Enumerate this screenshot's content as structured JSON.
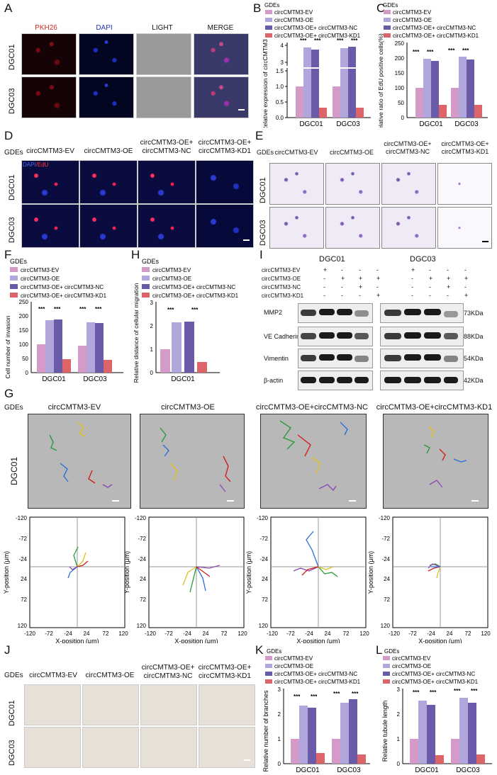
{
  "panels": {
    "A": "A",
    "B": "B",
    "C": "C",
    "D": "D",
    "E": "E",
    "F": "F",
    "G": "G",
    "H": "H",
    "I": "I",
    "J": "J",
    "K": "K",
    "L": "L"
  },
  "colors": {
    "ev": "#d49bc8",
    "oe": "#b1a6db",
    "nc": "#6a5aa8",
    "kd1": "#dd6468"
  },
  "legend": {
    "title": "GDEs",
    "ev": "circCMTM3-EV",
    "oe": "circCMTM3-OE",
    "nc": "circCMTM3-OE+ circCMTM3-NC",
    "kd1": "circCMTM3-OE+ circCMTM3-KD1"
  },
  "panelA": {
    "cols": [
      "PKH26",
      "DAPI",
      "LIGHT",
      "MERGE"
    ],
    "rows": [
      "DGC01",
      "DGC03"
    ]
  },
  "panelD": {
    "gdes": "GDEs",
    "cols": [
      "circCMTM3-EV",
      "circCMTM3-OE",
      "circCMTM3-OE+\ncircCMTM3-NC",
      "circCMTM3-OE+\ncircCMTM3-KD1"
    ],
    "rows": [
      "DGC01",
      "DGC03"
    ],
    "stain": "DAPI/EdU",
    "stain_dapi": "DAPI",
    "stain_edu": "/EdU"
  },
  "panelE": {
    "gdes": "GDEs",
    "cols": [
      "circCMTM3-EV",
      "circCMTM3-OE",
      "circCMTM3-OE+\ncircCMTM3-NC",
      "circCMTM3-OE+\ncircCMTM3-KD1"
    ],
    "rows": [
      "DGC01",
      "DGC03"
    ]
  },
  "panelG": {
    "gdes": "GDEs",
    "cols": [
      "circCMTM3-EV",
      "circCMTM3-OE",
      "circCMTM3-OE+circCMTM3-NC",
      "circCMTM3-OE+circCMTM3-KD1"
    ],
    "row": "DGC01"
  },
  "panelI": {
    "groups": [
      "DGC01",
      "DGC03"
    ],
    "conditions": [
      "circCMTM3-EV",
      "circCMTM3-OE",
      "circCMTM3-NC",
      "circCMTM3-KD1"
    ],
    "signs": [
      [
        "+",
        "-",
        "-",
        "-"
      ],
      [
        "-",
        "+",
        "+",
        "+"
      ],
      [
        "-",
        "-",
        "+",
        "-"
      ],
      [
        "-",
        "-",
        "-",
        "+"
      ]
    ],
    "proteins": [
      "MMP2",
      "VE Cadherin",
      "Vimentin",
      "β-actin"
    ],
    "sizes": [
      "73KDa",
      "88KDa",
      "54KDa",
      "42KDa"
    ]
  },
  "panelJ": {
    "gdes": "GDEs",
    "cols": [
      "circCMTM3-EV",
      "circCMTM3-OE",
      "circCMTM3-OE+\ncircCMTM3-NC",
      "circCMTM3-OE+\ncircCMTM3-KD1"
    ],
    "rows": [
      "DGC01",
      "DGC03"
    ]
  },
  "chart_data": [
    {
      "panel": "B",
      "type": "bar",
      "categories": [
        "DGC01",
        "DGC03"
      ],
      "ylabel": "Relative expression of circCMTM3",
      "ylim": [
        0,
        4
      ],
      "axis_break": [
        1.5,
        3
      ],
      "yticks": [
        "0.0",
        "0.5",
        "1.0",
        "1.5",
        "3",
        "4"
      ],
      "series": [
        {
          "name": "circCMTM3-EV",
          "values": [
            1.0,
            1.0
          ]
        },
        {
          "name": "circCMTM3-OE",
          "values": [
            3.9,
            3.85
          ]
        },
        {
          "name": "circCMTM3-OE+ circCMTM3-NC",
          "values": [
            3.75,
            3.9
          ]
        },
        {
          "name": "circCMTM3-OE+ circCMTM3-KD1",
          "values": [
            0.32,
            0.32
          ]
        }
      ],
      "sig": [
        "***",
        "***"
      ]
    },
    {
      "panel": "C",
      "type": "bar",
      "categories": [
        "DGC01",
        "DGC03"
      ],
      "ylabel": "Relative ratio of EdU positive cells(%)",
      "ylim": [
        0,
        250
      ],
      "yticks": [
        "0",
        "50",
        "100",
        "150",
        "200",
        "250"
      ],
      "series": [
        {
          "name": "circCMTM3-EV",
          "values": [
            100,
            100
          ]
        },
        {
          "name": "circCMTM3-OE",
          "values": [
            198,
            205
          ]
        },
        {
          "name": "circCMTM3-OE+ circCMTM3-NC",
          "values": [
            190,
            195
          ]
        },
        {
          "name": "circCMTM3-OE+ circCMTM3-KD1",
          "values": [
            43,
            43
          ]
        }
      ],
      "sig": [
        "***",
        "***"
      ]
    },
    {
      "panel": "F",
      "type": "bar",
      "categories": [
        "DGC01",
        "DGC03"
      ],
      "ylabel": "Cell number of invasion",
      "ylim": [
        0,
        250
      ],
      "yticks": [
        "0",
        "50",
        "100",
        "150",
        "200",
        "250"
      ],
      "series": [
        {
          "name": "circCMTM3-EV",
          "values": [
            100,
            95
          ]
        },
        {
          "name": "circCMTM3-OE",
          "values": [
            185,
            178
          ]
        },
        {
          "name": "circCMTM3-OE+ circCMTM3-NC",
          "values": [
            188,
            176
          ]
        },
        {
          "name": "circCMTM3-OE+ circCMTM3-KD1",
          "values": [
            48,
            46
          ]
        }
      ],
      "sig": [
        "***",
        "***"
      ]
    },
    {
      "panel": "H",
      "type": "bar",
      "categories": [
        "DGC01"
      ],
      "ylabel": "Relative distance of cellular migration",
      "ylim": [
        0,
        3
      ],
      "yticks": [
        "0",
        "1",
        "2",
        "3"
      ],
      "series": [
        {
          "name": "circCMTM3-EV",
          "values": [
            1.0
          ]
        },
        {
          "name": "circCMTM3-OE",
          "values": [
            2.15
          ]
        },
        {
          "name": "circCMTM3-OE+ circCMTM3-NC",
          "values": [
            2.2
          ]
        },
        {
          "name": "circCMTM3-OE+ circCMTM3-KD1",
          "values": [
            0.45
          ]
        }
      ],
      "sig": [
        "***",
        "***"
      ]
    },
    {
      "panel": "G-tracks",
      "type": "line",
      "xlabel": "X-position (μm)",
      "ylabel": "Y-position (μm)",
      "xticks": [
        "-120",
        "-72",
        "-24",
        "24",
        "72",
        "120"
      ],
      "yticks": [
        "-120",
        "-72",
        "-24",
        "24",
        "72",
        "120"
      ]
    },
    {
      "panel": "K",
      "type": "bar",
      "categories": [
        "DGC01",
        "DGC03"
      ],
      "ylabel": "Relative number of branches",
      "ylim": [
        0,
        3
      ],
      "yticks": [
        "0",
        "1",
        "2",
        "3"
      ],
      "series": [
        {
          "name": "circCMTM3-EV",
          "values": [
            1.0,
            1.0
          ]
        },
        {
          "name": "circCMTM3-OE",
          "values": [
            2.35,
            2.45
          ]
        },
        {
          "name": "circCMTM3-OE+ circCMTM3-NC",
          "values": [
            2.25,
            2.6
          ]
        },
        {
          "name": "circCMTM3-OE+ circCMTM3-KD1",
          "values": [
            0.42,
            0.38
          ]
        }
      ],
      "sig": [
        "***",
        "***"
      ]
    },
    {
      "panel": "L",
      "type": "bar",
      "categories": [
        "DGC01",
        "DGC03"
      ],
      "ylabel": "Relative tubule length",
      "ylim": [
        0,
        3
      ],
      "yticks": [
        "0",
        "1",
        "2",
        "3"
      ],
      "series": [
        {
          "name": "circCMTM3-EV",
          "values": [
            1.0,
            1.0
          ]
        },
        {
          "name": "circCMTM3-OE",
          "values": [
            2.55,
            2.65
          ]
        },
        {
          "name": "circCMTM3-OE+ circCMTM3-NC",
          "values": [
            2.38,
            2.45
          ]
        },
        {
          "name": "circCMTM3-OE+ circCMTM3-KD1",
          "values": [
            0.35,
            0.38
          ]
        }
      ],
      "sig": [
        "***",
        "***"
      ]
    }
  ]
}
